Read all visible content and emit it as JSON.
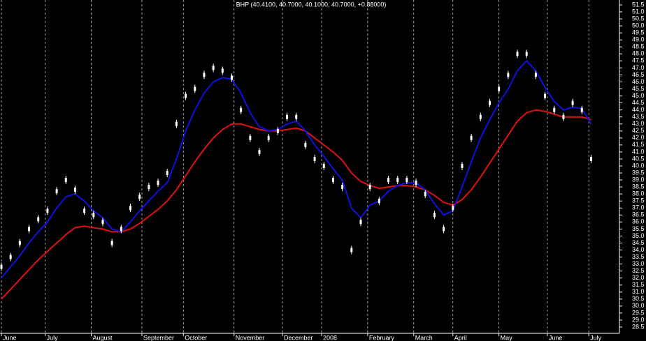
{
  "chart_data": {
    "type": "candlestick",
    "title": "BHP (40.4100, 40.7000, 40.1000, 40.7000, +0.88000)",
    "x": [
      0,
      4,
      8,
      12,
      16,
      20,
      24,
      28,
      32,
      36,
      40,
      44,
      48,
      52,
      56,
      60,
      64,
      68,
      72,
      76,
      80,
      84,
      88,
      92,
      96,
      100,
      104,
      108,
      112,
      116,
      120,
      124,
      128,
      132,
      136,
      140,
      144,
      148,
      152,
      156,
      160,
      164,
      168,
      172,
      176,
      180,
      184,
      188,
      192,
      196,
      200,
      204,
      208,
      212,
      216,
      220,
      224,
      228,
      232,
      236,
      240,
      244,
      248,
      252,
      256
    ],
    "xlim": [
      0,
      268
    ],
    "xticks": [
      {
        "value": 0,
        "label": "June"
      },
      {
        "value": 19,
        "label": "July"
      },
      {
        "value": 39,
        "label": "August"
      },
      {
        "value": 61,
        "label": "September"
      },
      {
        "value": 79,
        "label": "October"
      },
      {
        "value": 101,
        "label": "November"
      },
      {
        "value": 122,
        "label": "December"
      },
      {
        "value": 139,
        "label": "2008"
      },
      {
        "value": 159,
        "label": "February"
      },
      {
        "value": 179,
        "label": "March"
      },
      {
        "value": 196,
        "label": "April"
      },
      {
        "value": 216,
        "label": "May"
      },
      {
        "value": 237,
        "label": "June"
      },
      {
        "value": 255,
        "label": "July"
      }
    ],
    "values": [
      32.8,
      33.5,
      34.5,
      35.5,
      36.2,
      36.8,
      38.2,
      39.0,
      38.3,
      36.8,
      36.5,
      36.0,
      34.5,
      35.5,
      37.0,
      37.8,
      38.5,
      38.8,
      39.5,
      43.0,
      45.0,
      45.5,
      46.5,
      47.0,
      46.8,
      46.3,
      44.0,
      42.0,
      41.0,
      42.0,
      42.5,
      43.5,
      43.5,
      41.5,
      40.5,
      40.0,
      39.0,
      38.5,
      34.0,
      36.0,
      38.5,
      37.5,
      39.0,
      39.0,
      39.0,
      38.8,
      38.0,
      36.5,
      35.5,
      37.0,
      40.0,
      42.0,
      43.5,
      44.5,
      45.5,
      46.5,
      48.0,
      48.0,
      46.5,
      45.0,
      44.0,
      43.5,
      44.5,
      44.0,
      40.5
    ],
    "color": "#ffffff",
    "series": [
      {
        "color": "#1010e0",
        "values": [
          32.0,
          32.8,
          33.6,
          34.5,
          35.3,
          36.0,
          37.0,
          37.8,
          38.0,
          37.5,
          36.8,
          36.3,
          35.5,
          35.3,
          36.0,
          36.8,
          37.5,
          38.2,
          38.8,
          40.5,
          42.5,
          44.0,
          45.2,
          46.0,
          46.3,
          46.2,
          45.2,
          43.8,
          42.8,
          42.5,
          42.6,
          43.0,
          43.2,
          42.5,
          41.5,
          40.7,
          39.8,
          39.0,
          37.0,
          36.3,
          37.2,
          37.5,
          38.2,
          38.6,
          38.8,
          38.8,
          38.3,
          37.3,
          36.5,
          36.8,
          38.5,
          40.3,
          42.0,
          43.3,
          44.5,
          45.5,
          46.8,
          47.5,
          46.8,
          45.6,
          44.6,
          44.0,
          44.2,
          44.1,
          43.0
        ]
      },
      {
        "color": "#e01010",
        "values": [
          30.5,
          31.2,
          31.9,
          32.6,
          33.3,
          33.9,
          34.5,
          35.1,
          35.6,
          35.7,
          35.6,
          35.5,
          35.3,
          35.3,
          35.5,
          35.9,
          36.4,
          36.9,
          37.5,
          38.3,
          39.3,
          40.3,
          41.2,
          42.0,
          42.6,
          43.0,
          43.0,
          42.8,
          42.6,
          42.5,
          42.5,
          42.6,
          42.7,
          42.5,
          42.0,
          41.5,
          41.0,
          40.4,
          39.5,
          38.9,
          38.6,
          38.4,
          38.5,
          38.6,
          38.6,
          38.5,
          38.3,
          37.9,
          37.4,
          37.2,
          37.6,
          38.3,
          39.2,
          40.2,
          41.2,
          42.2,
          43.2,
          43.8,
          44.0,
          43.9,
          43.7,
          43.5,
          43.5,
          43.5,
          43.3
        ]
      }
    ],
    "ylim": [
      28.5,
      51.5
    ],
    "yticks": [
      28.5,
      {
        "value": 29,
        "label": "29.0"
      },
      29.5,
      {
        "value": 30,
        "label": "30.0"
      },
      30.5,
      {
        "value": 31,
        "label": "31.0"
      },
      31.5,
      {
        "value": 32,
        "label": "32.0"
      },
      32.5,
      {
        "value": 33,
        "label": "33.0"
      },
      33.5,
      {
        "value": 34,
        "label": "34.0"
      },
      34.5,
      {
        "value": 35,
        "label": "35.0"
      },
      35.5,
      {
        "value": 36,
        "label": "36.0"
      },
      36.5,
      {
        "value": 37,
        "label": "37.0"
      },
      37.5,
      {
        "value": 38,
        "label": "38.0"
      },
      38.5,
      {
        "value": 39,
        "label": "39.0"
      },
      39.5,
      {
        "value": 40,
        "label": "40.0"
      },
      40.5,
      {
        "value": 41,
        "label": "41.0"
      },
      41.5,
      {
        "value": 42,
        "label": "42.0"
      },
      42.5,
      {
        "value": 43,
        "label": "43.0"
      },
      43.5,
      {
        "value": 44,
        "label": "44.0"
      },
      44.5,
      {
        "value": 45,
        "label": "45.0"
      },
      45.5,
      {
        "value": 46,
        "label": "46.0"
      },
      46.5,
      {
        "value": 47,
        "label": "47.0"
      },
      47.5,
      {
        "value": 48,
        "label": "48.0"
      },
      48.5,
      {
        "value": 49,
        "label": "49.0"
      },
      49.5,
      {
        "value": 50,
        "label": "50.0"
      },
      50.5,
      {
        "value": 51,
        "label": "51.0"
      },
      51.5
    ]
  }
}
